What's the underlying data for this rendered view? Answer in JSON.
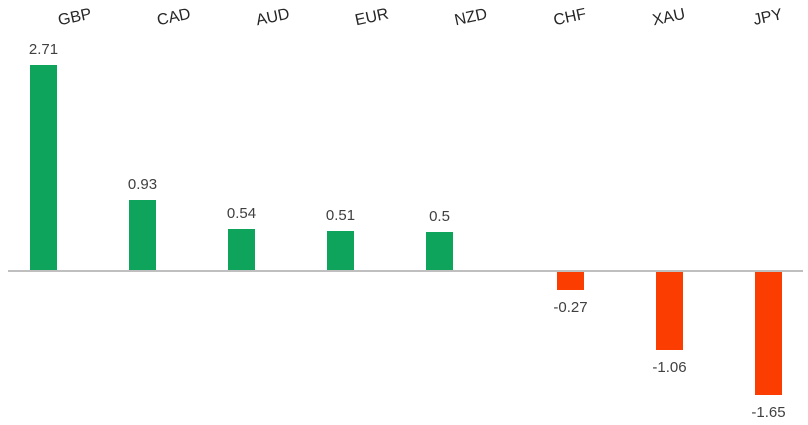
{
  "chart_data": {
    "type": "bar",
    "categories": [
      "GBP",
      "CAD",
      "AUD",
      "EUR",
      "NZD",
      "CHF",
      "XAU",
      "JPY"
    ],
    "values": [
      2.71,
      0.93,
      0.54,
      0.51,
      0.5,
      -0.27,
      -1.06,
      -1.65
    ],
    "value_labels": [
      "2.71",
      "0.93",
      "0.54",
      "0.51",
      "0.5",
      "-0.27",
      "-1.06",
      "-1.65"
    ],
    "title": "",
    "xlabel": "",
    "ylabel": "",
    "ylim": [
      -1.65,
      2.71
    ],
    "grid": false,
    "legend": false,
    "category_labels_position": "top",
    "category_labels_rotated": true
  },
  "colors": {
    "positive_bar": "#0FA45C",
    "negative_bar": "#FB3D01",
    "axis_line": "#BFBFBF",
    "value_text": "#404040",
    "category_text": "#262626",
    "background": "#FFFFFF"
  }
}
